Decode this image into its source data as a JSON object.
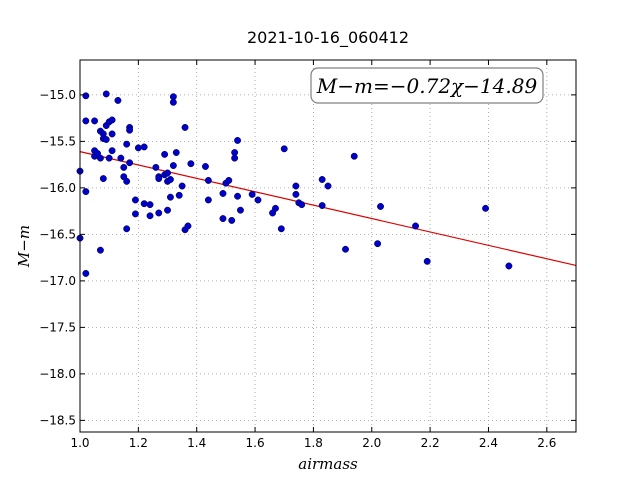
{
  "chart_data": {
    "type": "scatter",
    "title": "2021-10-16_060412",
    "xlabel": "airmass",
    "ylabel": "M−m",
    "xlim": [
      1.0,
      2.7
    ],
    "ylim": [
      -18.625,
      -14.625
    ],
    "xticks": [
      1.0,
      1.2,
      1.4,
      1.6,
      1.8,
      2.0,
      2.2,
      2.4,
      2.6
    ],
    "yticks": [
      -15.0,
      -15.5,
      -16.0,
      -16.5,
      -17.0,
      -17.5,
      -18.0,
      -18.5
    ],
    "grid": true,
    "annotation": "M−m=−0.72χ−14.89",
    "colors": {
      "points": "#0000cc",
      "fit": "#dd0000",
      "annotation_border": "#808080"
    },
    "fit": {
      "slope": -0.72,
      "intercept": -14.89
    },
    "series": [
      {
        "points": [
          [
            1.0,
            -15.82
          ],
          [
            1.0,
            -16.54
          ],
          [
            1.02,
            -15.01
          ],
          [
            1.02,
            -15.28
          ],
          [
            1.02,
            -16.04
          ],
          [
            1.02,
            -16.92
          ],
          [
            1.05,
            -15.28
          ],
          [
            1.05,
            -15.6
          ],
          [
            1.05,
            -15.66
          ],
          [
            1.06,
            -15.63
          ],
          [
            1.07,
            -15.39
          ],
          [
            1.07,
            -15.68
          ],
          [
            1.07,
            -16.67
          ],
          [
            1.08,
            -15.42
          ],
          [
            1.08,
            -15.9
          ],
          [
            1.08,
            -15.47
          ],
          [
            1.09,
            -14.99
          ],
          [
            1.09,
            -15.48
          ],
          [
            1.09,
            -15.33
          ],
          [
            1.1,
            -15.68
          ],
          [
            1.1,
            -15.29
          ],
          [
            1.11,
            -15.27
          ],
          [
            1.11,
            -15.42
          ],
          [
            1.11,
            -15.6
          ],
          [
            1.13,
            -15.06
          ],
          [
            1.14,
            -15.68
          ],
          [
            1.15,
            -15.78
          ],
          [
            1.15,
            -15.88
          ],
          [
            1.16,
            -15.53
          ],
          [
            1.16,
            -15.93
          ],
          [
            1.16,
            -16.44
          ],
          [
            1.17,
            -15.35
          ],
          [
            1.17,
            -15.38
          ],
          [
            1.17,
            -15.73
          ],
          [
            1.19,
            -16.13
          ],
          [
            1.19,
            -16.28
          ],
          [
            1.2,
            -15.57
          ],
          [
            1.22,
            -15.56
          ],
          [
            1.22,
            -16.17
          ],
          [
            1.24,
            -16.3
          ],
          [
            1.24,
            -16.18
          ],
          [
            1.26,
            -15.78
          ],
          [
            1.27,
            -15.88
          ],
          [
            1.27,
            -15.9
          ],
          [
            1.27,
            -16.27
          ],
          [
            1.29,
            -15.86
          ],
          [
            1.29,
            -15.64
          ],
          [
            1.3,
            -15.93
          ],
          [
            1.3,
            -16.24
          ],
          [
            1.3,
            -15.84
          ],
          [
            1.31,
            -16.1
          ],
          [
            1.31,
            -15.91
          ],
          [
            1.32,
            -15.76
          ],
          [
            1.32,
            -15.02
          ],
          [
            1.32,
            -15.08
          ],
          [
            1.33,
            -15.62
          ],
          [
            1.34,
            -16.08
          ],
          [
            1.35,
            -15.98
          ],
          [
            1.36,
            -16.45
          ],
          [
            1.36,
            -15.35
          ],
          [
            1.37,
            -16.41
          ],
          [
            1.38,
            -15.74
          ],
          [
            1.43,
            -15.77
          ],
          [
            1.44,
            -16.13
          ],
          [
            1.44,
            -15.92
          ],
          [
            1.49,
            -16.06
          ],
          [
            1.49,
            -16.33
          ],
          [
            1.5,
            -15.95
          ],
          [
            1.51,
            -15.92
          ],
          [
            1.52,
            -16.35
          ],
          [
            1.53,
            -15.62
          ],
          [
            1.53,
            -15.68
          ],
          [
            1.54,
            -16.09
          ],
          [
            1.54,
            -15.49
          ],
          [
            1.55,
            -16.24
          ],
          [
            1.59,
            -16.07
          ],
          [
            1.61,
            -16.13
          ],
          [
            1.66,
            -16.27
          ],
          [
            1.67,
            -16.22
          ],
          [
            1.69,
            -16.44
          ],
          [
            1.7,
            -15.58
          ],
          [
            1.74,
            -15.98
          ],
          [
            1.74,
            -16.07
          ],
          [
            1.75,
            -16.16
          ],
          [
            1.76,
            -16.18
          ],
          [
            1.83,
            -15.91
          ],
          [
            1.83,
            -16.19
          ],
          [
            1.85,
            -15.98
          ],
          [
            1.91,
            -16.66
          ],
          [
            1.94,
            -15.66
          ],
          [
            2.02,
            -16.6
          ],
          [
            2.03,
            -16.2
          ],
          [
            2.15,
            -16.41
          ],
          [
            2.19,
            -16.79
          ],
          [
            2.39,
            -16.22
          ],
          [
            2.47,
            -16.84
          ]
        ]
      }
    ]
  }
}
